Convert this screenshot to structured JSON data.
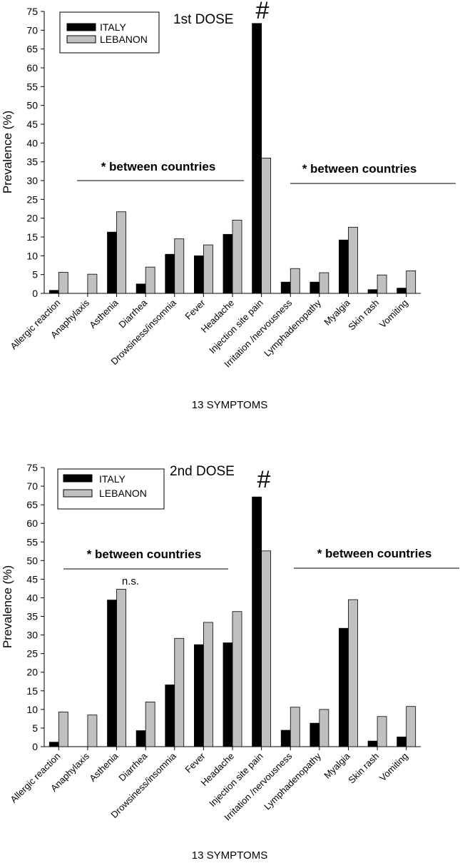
{
  "colors": {
    "italy": "#000000",
    "lebanon": "#c0c0c0"
  },
  "chart_data": [
    {
      "type": "bar",
      "title": "1st DOSE",
      "xlabel": "13 SYMPTOMS",
      "ylabel": "Prevalence (%)",
      "ylim": [
        0,
        75
      ],
      "yticks": [
        0,
        5,
        10,
        15,
        20,
        25,
        30,
        35,
        40,
        45,
        50,
        55,
        60,
        65,
        70,
        75
      ],
      "categories": [
        "Allergic reaction",
        "Anaphylaxis",
        "Asthenia",
        "Diarrhea",
        "Drowsiness/insomnia",
        "Fever",
        "Headache",
        "Injection site pain",
        "Irritation /nervousness",
        "Lymphadenopathy",
        "Myalgia",
        "Skin rash",
        "Vomiting"
      ],
      "series": [
        {
          "name": "ITALY",
          "values": [
            0.8,
            0,
            16.3,
            2.5,
            10.4,
            10.0,
            15.7,
            71.8,
            3.0,
            3.0,
            14.2,
            1.0,
            1.4
          ]
        },
        {
          "name": "LEBANON",
          "values": [
            5.6,
            5.1,
            21.7,
            7.0,
            14.5,
            12.9,
            19.5,
            36.0,
            6.6,
            5.5,
            17.6,
            4.9,
            6.0
          ]
        }
      ],
      "annotations": {
        "hash": "#",
        "left_sig": "* between countries",
        "right_sig": "* between countries",
        "ns": ""
      }
    },
    {
      "type": "bar",
      "title": "2nd DOSE",
      "xlabel": "13 SYMPTOMS",
      "ylabel": "Prevalence (%)",
      "ylim": [
        0,
        75
      ],
      "yticks": [
        0,
        5,
        10,
        15,
        20,
        25,
        30,
        35,
        40,
        45,
        50,
        55,
        60,
        65,
        70,
        75
      ],
      "categories": [
        "Allergic reaction",
        "Anaphylaxis",
        "Asthenia",
        "Diarrhea",
        "Drowsiness/insomnia",
        "Fever",
        "Headache",
        "Injection site pain",
        "Irritation /nervousness",
        "Lymphadenopathy",
        "Myalgia",
        "Skin rash",
        "Vomiting"
      ],
      "series": [
        {
          "name": "ITALY",
          "values": [
            1.2,
            0,
            39.4,
            4.3,
            16.6,
            27.4,
            27.9,
            67.1,
            4.4,
            6.3,
            31.8,
            1.5,
            2.6
          ]
        },
        {
          "name": "LEBANON",
          "values": [
            9.3,
            8.5,
            42.3,
            12.0,
            29.1,
            33.4,
            36.3,
            52.6,
            10.6,
            10.0,
            39.5,
            8.1,
            10.8
          ]
        }
      ],
      "annotations": {
        "hash": "#",
        "left_sig": "* between countries",
        "right_sig": "* between countries",
        "ns": "n.s."
      }
    }
  ]
}
